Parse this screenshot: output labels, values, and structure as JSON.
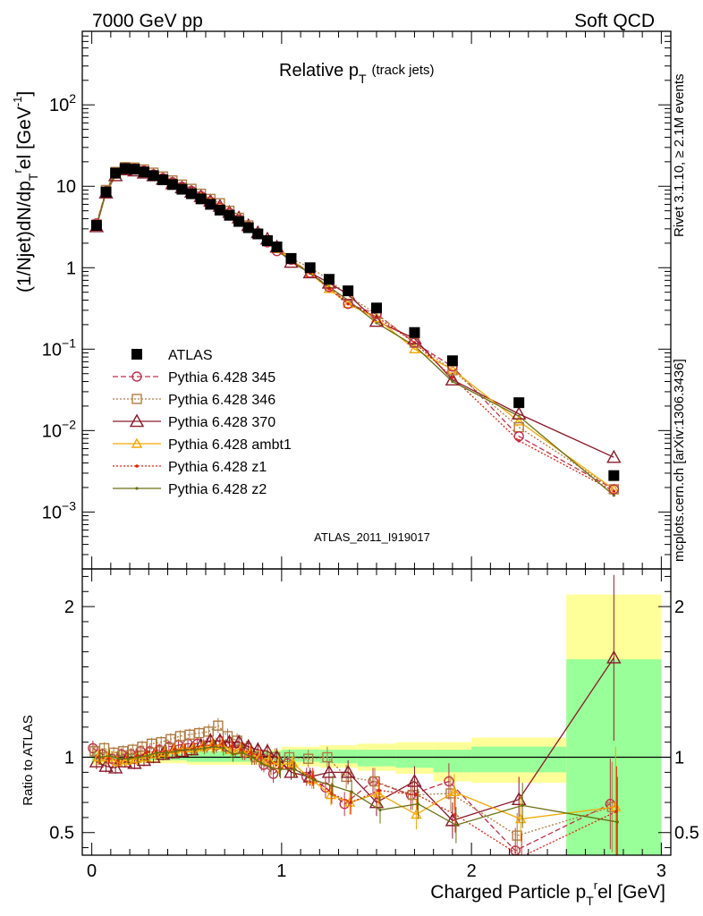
{
  "header": {
    "left": "7000 GeV pp",
    "right": "Soft QCD"
  },
  "plot_title": {
    "main": "Relative p",
    "sub": "T",
    "note": "(track jets)"
  },
  "side_text": {
    "rivet": "Rivet 3.1.10, ≥ 2.1M events",
    "mcplots": "mcplots.cern.ch [arXiv:1306.3436]"
  },
  "analysis_label": "ATLAS_2011_I919017",
  "colors": {
    "data": "#000000",
    "p345": "#c0304a",
    "p346": "#b07c40",
    "p370": "#8b1a2a",
    "ambt1": "#f5a800",
    "z1": "#e62010",
    "z2": "#6b7010",
    "band_inner": "#99ff99",
    "band_outer": "#ffff99"
  },
  "chart_data": [
    {
      "type": "line",
      "ylabel": "(1/Njet)dN/dp",
      "yscale": "log",
      "ylim": [
        0.0002,
        800
      ],
      "xlim": [
        -0.05,
        3.05
      ],
      "y_ticks": [
        {
          "v": 0.001,
          "b": "10",
          "e": "−3"
        },
        {
          "v": 0.01,
          "b": "10",
          "e": "−2"
        },
        {
          "v": 0.1,
          "b": "10",
          "e": "−1"
        },
        {
          "v": 1,
          "b": "1",
          "e": ""
        },
        {
          "v": 10,
          "b": "10",
          "e": ""
        },
        {
          "v": 100,
          "b": "10",
          "e": "2"
        }
      ],
      "x": [
        0.025,
        0.075,
        0.125,
        0.175,
        0.225,
        0.275,
        0.325,
        0.375,
        0.425,
        0.475,
        0.525,
        0.575,
        0.625,
        0.675,
        0.725,
        0.775,
        0.825,
        0.875,
        0.925,
        0.975,
        1.05,
        1.15,
        1.25,
        1.35,
        1.5,
        1.7,
        1.9,
        2.25,
        2.75
      ],
      "series": [
        {
          "name": "ATLAS",
          "key": "data",
          "values": [
            3.3,
            8.5,
            14.5,
            16.5,
            16.2,
            15.0,
            13.5,
            12.0,
            10.5,
            9.2,
            8.1,
            7.0,
            6.0,
            5.1,
            4.4,
            3.7,
            3.1,
            2.6,
            2.15,
            1.8,
            1.3,
            1.0,
            0.72,
            0.52,
            0.32,
            0.16,
            0.072,
            0.022,
            0.0028
          ]
        },
        {
          "name": "Pythia 6.428 345",
          "key": "p345",
          "values": [
            3.5,
            8.7,
            14.3,
            16.8,
            16.5,
            15.6,
            14.0,
            12.6,
            11.2,
            9.9,
            8.8,
            7.6,
            6.5,
            5.5,
            4.7,
            3.9,
            3.2,
            2.6,
            2.05,
            1.6,
            1.25,
            0.87,
            0.58,
            0.36,
            0.27,
            0.12,
            0.061,
            0.0085,
            0.0019
          ]
        },
        {
          "name": "Pythia 6.428 346",
          "key": "p346",
          "values": [
            3.4,
            9.0,
            15.0,
            17.2,
            17.0,
            16.1,
            14.7,
            13.2,
            11.8,
            10.5,
            9.3,
            8.1,
            7.0,
            6.2,
            5.0,
            4.1,
            3.3,
            2.6,
            2.1,
            1.8,
            1.3,
            1.0,
            0.72,
            0.45,
            0.27,
            0.12,
            0.055,
            0.011,
            0.0019
          ]
        },
        {
          "name": "Pythia 6.428 370",
          "key": "p370",
          "values": [
            3.2,
            8.3,
            13.5,
            16.0,
            15.5,
            14.6,
            13.5,
            12.2,
            10.8,
            9.6,
            8.5,
            7.5,
            6.6,
            5.7,
            4.8,
            4.1,
            3.3,
            2.7,
            2.25,
            1.8,
            1.17,
            0.87,
            0.65,
            0.47,
            0.22,
            0.135,
            0.042,
            0.016,
            0.0047
          ]
        },
        {
          "name": "Pythia 6.428 ambt1",
          "key": "ambt1",
          "values": [
            3.3,
            8.5,
            14.0,
            16.2,
            16.0,
            15.0,
            13.8,
            12.4,
            11.0,
            9.8,
            8.6,
            7.5,
            6.5,
            5.5,
            4.6,
            3.9,
            3.2,
            2.6,
            2.1,
            1.7,
            1.25,
            0.85,
            0.55,
            0.36,
            0.24,
            0.1,
            0.056,
            0.013,
            0.0019
          ]
        },
        {
          "name": "Pythia 6.428 z1",
          "key": "z1",
          "values": [
            3.3,
            8.4,
            14.2,
            16.6,
            16.4,
            15.4,
            14.0,
            12.5,
            11.0,
            9.7,
            8.6,
            7.6,
            6.5,
            5.6,
            4.7,
            3.9,
            3.2,
            2.6,
            2.1,
            1.7,
            1.2,
            0.87,
            0.55,
            0.36,
            0.25,
            0.12,
            0.045,
            0.0075,
            0.0018
          ]
        },
        {
          "name": "Pythia 6.428 z2",
          "key": "z2",
          "values": [
            3.3,
            8.6,
            14.3,
            16.4,
            16.2,
            15.2,
            13.9,
            12.4,
            11.0,
            9.7,
            8.5,
            7.4,
            6.4,
            5.4,
            4.5,
            3.8,
            3.1,
            2.5,
            2.0,
            1.65,
            1.2,
            0.85,
            0.58,
            0.4,
            0.21,
            0.11,
            0.04,
            0.015,
            0.0016
          ]
        }
      ]
    },
    {
      "type": "line",
      "ylabel": "Ratio to ATLAS",
      "xlabel": "Charged Particle p",
      "xlabel_suffix": "el [GeV]",
      "ylim": [
        0.35,
        2.25
      ],
      "xlim": [
        -0.05,
        3.05
      ],
      "x_ticks": [
        0,
        1,
        2,
        3
      ],
      "y_ticks": [
        0.5,
        1,
        2
      ],
      "bands": [
        {
          "x0": 0.0,
          "x1": 0.1,
          "inner": [
            0.97,
            1.03
          ],
          "outer": [
            0.95,
            1.05
          ]
        },
        {
          "x0": 0.1,
          "x1": 0.5,
          "inner": [
            0.98,
            1.02
          ],
          "outer": [
            0.96,
            1.04
          ]
        },
        {
          "x0": 0.5,
          "x1": 1.0,
          "inner": [
            0.97,
            1.04
          ],
          "outer": [
            0.95,
            1.05
          ]
        },
        {
          "x0": 1.0,
          "x1": 1.2,
          "inner": [
            0.97,
            1.05
          ],
          "outer": [
            0.94,
            1.07
          ]
        },
        {
          "x0": 1.2,
          "x1": 1.4,
          "inner": [
            0.96,
            1.05
          ],
          "outer": [
            0.93,
            1.08
          ]
        },
        {
          "x0": 1.4,
          "x1": 1.6,
          "inner": [
            0.94,
            1.05
          ],
          "outer": [
            0.91,
            1.09
          ]
        },
        {
          "x0": 1.6,
          "x1": 1.8,
          "inner": [
            0.93,
            1.05
          ],
          "outer": [
            0.89,
            1.1
          ]
        },
        {
          "x0": 1.8,
          "x1": 2.0,
          "inner": [
            0.9,
            1.05
          ],
          "outer": [
            0.84,
            1.1
          ]
        },
        {
          "x0": 2.0,
          "x1": 2.5,
          "inner": [
            0.9,
            1.07
          ],
          "outer": [
            0.83,
            1.13
          ]
        },
        {
          "x0": 2.5,
          "x1": 3.0,
          "inner": [
            0.35,
            1.65
          ],
          "outer": [
            0.35,
            2.08
          ]
        }
      ],
      "x": [
        0.025,
        0.075,
        0.125,
        0.175,
        0.225,
        0.275,
        0.325,
        0.375,
        0.425,
        0.475,
        0.525,
        0.575,
        0.625,
        0.675,
        0.725,
        0.775,
        0.825,
        0.875,
        0.925,
        0.975,
        1.05,
        1.15,
        1.25,
        1.35,
        1.5,
        1.7,
        1.9,
        2.25,
        2.75
      ],
      "series": [
        {
          "name": "Pythia 6.428 345",
          "key": "p345",
          "values": [
            1.06,
            1.02,
            0.99,
            1.02,
            1.02,
            1.04,
            1.04,
            1.05,
            1.07,
            1.08,
            1.09,
            1.09,
            1.08,
            1.08,
            1.07,
            1.05,
            1.03,
            1.0,
            0.95,
            0.89,
            0.96,
            0.87,
            0.8,
            0.69,
            0.84,
            0.75,
            0.84,
            0.38,
            0.69
          ],
          "err": [
            0.05,
            0.04,
            0.04,
            0.04,
            0.04,
            0.04,
            0.04,
            0.04,
            0.04,
            0.04,
            0.04,
            0.04,
            0.05,
            0.05,
            0.05,
            0.05,
            0.05,
            0.05,
            0.05,
            0.06,
            0.05,
            0.06,
            0.07,
            0.08,
            0.09,
            0.1,
            0.12,
            0.15,
            0.3
          ]
        },
        {
          "name": "Pythia 6.428 346",
          "key": "p346",
          "values": [
            1.04,
            1.06,
            1.03,
            1.04,
            1.05,
            1.07,
            1.09,
            1.1,
            1.12,
            1.14,
            1.15,
            1.16,
            1.17,
            1.21,
            1.14,
            1.11,
            1.06,
            1.0,
            0.98,
            1.0,
            1.0,
            0.99,
            1.0,
            0.87,
            0.84,
            0.75,
            0.76,
            0.48,
            0.67
          ],
          "err": [
            0.05,
            0.04,
            0.04,
            0.04,
            0.04,
            0.04,
            0.04,
            0.04,
            0.04,
            0.04,
            0.04,
            0.04,
            0.05,
            0.05,
            0.05,
            0.05,
            0.05,
            0.05,
            0.05,
            0.06,
            0.05,
            0.06,
            0.07,
            0.08,
            0.09,
            0.1,
            0.12,
            0.15,
            0.3
          ]
        },
        {
          "name": "Pythia 6.428 370",
          "key": "p370",
          "values": [
            0.97,
            0.94,
            0.93,
            0.97,
            0.96,
            0.98,
            1.0,
            1.02,
            1.03,
            1.04,
            1.05,
            1.08,
            1.11,
            1.11,
            1.1,
            1.1,
            1.07,
            1.05,
            1.04,
            1.0,
            0.9,
            0.87,
            0.9,
            0.9,
            0.7,
            0.84,
            0.58,
            0.72,
            1.66
          ],
          "err": [
            0.05,
            0.04,
            0.04,
            0.04,
            0.04,
            0.04,
            0.04,
            0.04,
            0.04,
            0.04,
            0.04,
            0.04,
            0.05,
            0.05,
            0.05,
            0.05,
            0.05,
            0.05,
            0.05,
            0.06,
            0.05,
            0.06,
            0.07,
            0.08,
            0.09,
            0.1,
            0.12,
            0.15,
            0.55
          ]
        },
        {
          "name": "Pythia 6.428 ambt1",
          "key": "ambt1",
          "values": [
            1.0,
            1.0,
            0.97,
            0.98,
            0.99,
            1.0,
            1.02,
            1.03,
            1.05,
            1.06,
            1.06,
            1.07,
            1.08,
            1.08,
            1.05,
            1.05,
            1.03,
            1.0,
            0.98,
            0.95,
            0.96,
            0.85,
            0.75,
            0.7,
            0.76,
            0.62,
            0.77,
            0.59,
            0.67
          ],
          "err": [
            0.05,
            0.04,
            0.04,
            0.04,
            0.04,
            0.04,
            0.04,
            0.04,
            0.04,
            0.04,
            0.04,
            0.04,
            0.05,
            0.05,
            0.05,
            0.05,
            0.05,
            0.05,
            0.05,
            0.06,
            0.05,
            0.06,
            0.07,
            0.08,
            0.09,
            0.1,
            0.12,
            0.15,
            0.4
          ]
        },
        {
          "name": "Pythia 6.428 z1",
          "key": "z1",
          "values": [
            1.0,
            0.99,
            0.98,
            1.0,
            1.01,
            1.03,
            1.04,
            1.04,
            1.05,
            1.05,
            1.06,
            1.08,
            1.08,
            1.09,
            1.07,
            1.05,
            1.03,
            1.0,
            0.97,
            0.93,
            0.92,
            0.87,
            0.76,
            0.7,
            0.78,
            0.75,
            0.62,
            0.34,
            0.64
          ],
          "err": [
            0.05,
            0.04,
            0.04,
            0.04,
            0.04,
            0.04,
            0.04,
            0.04,
            0.04,
            0.04,
            0.04,
            0.04,
            0.05,
            0.05,
            0.05,
            0.05,
            0.05,
            0.05,
            0.05,
            0.06,
            0.05,
            0.06,
            0.07,
            0.08,
            0.09,
            0.1,
            0.12,
            0.15,
            0.3
          ]
        },
        {
          "name": "Pythia 6.428 z2",
          "key": "z2",
          "values": [
            1.0,
            1.01,
            0.99,
            0.99,
            1.0,
            1.01,
            1.03,
            1.03,
            1.04,
            1.05,
            1.05,
            1.06,
            1.07,
            1.06,
            1.02,
            1.03,
            1.0,
            0.96,
            0.93,
            0.92,
            0.92,
            0.85,
            0.81,
            0.77,
            0.65,
            0.69,
            0.55,
            0.68,
            0.57
          ],
          "err": [
            0.05,
            0.04,
            0.04,
            0.04,
            0.04,
            0.04,
            0.04,
            0.04,
            0.04,
            0.04,
            0.04,
            0.04,
            0.05,
            0.05,
            0.05,
            0.05,
            0.05,
            0.05,
            0.05,
            0.06,
            0.05,
            0.06,
            0.07,
            0.08,
            0.09,
            0.1,
            0.12,
            0.15,
            0.3
          ]
        }
      ]
    }
  ]
}
